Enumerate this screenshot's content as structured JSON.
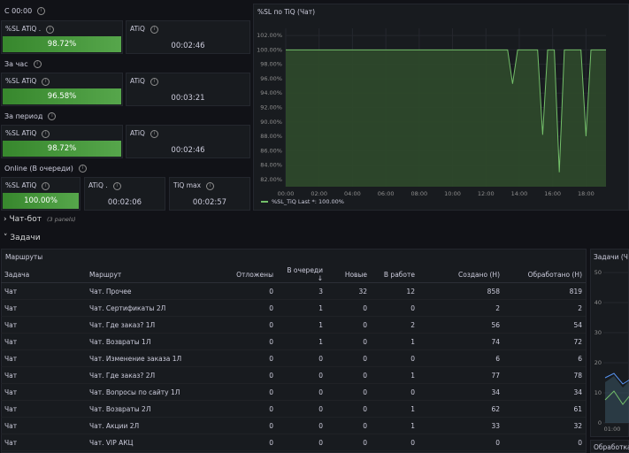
{
  "sections": {
    "c0000": "С 00:00",
    "za_chas": "За час",
    "za_period": "За период",
    "online": "Online (В очереди)"
  },
  "stats": {
    "r1": {
      "sl_title": "%SL ATiQ .",
      "sl_value": "98.72%",
      "atiq_title": "ATiQ",
      "atiq_value": "00:02:46"
    },
    "r2": {
      "sl_title": "%SL ATiQ",
      "sl_value": "96.58%",
      "atiq_title": "ATiQ",
      "atiq_value": "00:03:21"
    },
    "r3": {
      "sl_title": "%SL ATiQ",
      "sl_value": "98.72%",
      "atiq_title": "ATiQ",
      "atiq_value": "00:02:46"
    },
    "r4": {
      "sl_title": "%SL ATiQ",
      "sl_value": "100.00%",
      "atiq_title": "ATiQ .",
      "atiq_value": "00:02:06",
      "tiq_title": "TiQ max",
      "tiq_value": "00:02:57"
    }
  },
  "chart_panel": {
    "title": "%SL по TiQ (Чат)",
    "legend": "%SL_TiQ  Last *: 100.00%"
  },
  "chart_data": {
    "type": "area",
    "title": "%SL по TiQ (Чат)",
    "y_ticks": [
      "102.00%",
      "100.00%",
      "98.00%",
      "96.00%",
      "94.00%",
      "92.00%",
      "90.00%",
      "88.00%",
      "86.00%",
      "84.00%",
      "82.00%"
    ],
    "x_ticks": [
      "00:00",
      "02:00",
      "04:00",
      "06:00",
      "08:00",
      "10:00",
      "12:00",
      "14:00",
      "16:00",
      "18:00"
    ],
    "ylim": [
      81,
      103
    ],
    "xlim": [
      0,
      19.2
    ],
    "series": [
      {
        "name": "%SL_TiQ",
        "color": "#73bf69",
        "x": [
          0,
          13.3,
          13.6,
          13.9,
          14.5,
          15.1,
          15.4,
          15.7,
          16.1,
          16.4,
          16.7,
          17.1,
          17.4,
          17.7,
          18.0,
          18.3,
          18.6,
          19.2
        ],
        "values": [
          100,
          100,
          95.3,
          100,
          100,
          100,
          88.2,
          100,
          100,
          83.0,
          100,
          100,
          100,
          100,
          88.0,
          100,
          100,
          100
        ]
      }
    ]
  },
  "chatbot_row": {
    "title": "Чат-бот",
    "count": "(3 panels)"
  },
  "tasks_row": {
    "title": "Задачи"
  },
  "routes_panel": {
    "title": "Маршруты"
  },
  "right_panel_title": "Задачи (Ч",
  "right_panel_bottom": "Обработка",
  "right_chart": {
    "y_ticks": [
      "50",
      "40",
      "30",
      "20",
      "10",
      "0"
    ],
    "x_tick": "01:00"
  },
  "table": {
    "columns": [
      "Задача",
      "Маршрут",
      "Отложены",
      "В очереди ↓",
      "Новые",
      "В работе",
      "Создано (Н)",
      "Обработано (Н)"
    ],
    "rows": [
      [
        "Чат",
        "Чат. Прочее",
        "0",
        "3",
        "32",
        "12",
        "858",
        "819"
      ],
      [
        "Чат",
        "Чат. Сертификаты 2Л",
        "0",
        "1",
        "0",
        "0",
        "2",
        "2"
      ],
      [
        "Чат",
        "Чат. Где заказ? 1Л",
        "0",
        "1",
        "0",
        "2",
        "56",
        "54"
      ],
      [
        "Чат",
        "Чат. Возвраты 1Л",
        "0",
        "1",
        "0",
        "1",
        "74",
        "72"
      ],
      [
        "Чат",
        "Чат. Изменение заказа 1Л",
        "0",
        "0",
        "0",
        "0",
        "6",
        "6"
      ],
      [
        "Чат",
        "Чат. Где заказ? 2Л",
        "0",
        "0",
        "0",
        "1",
        "77",
        "78"
      ],
      [
        "Чат",
        "Чат. Вопросы по сайту 1Л",
        "0",
        "0",
        "0",
        "0",
        "34",
        "34"
      ],
      [
        "Чат",
        "Чат. Возвраты 2Л",
        "0",
        "0",
        "0",
        "1",
        "62",
        "61"
      ],
      [
        "Чат",
        "Чат. Акции 2Л",
        "0",
        "0",
        "0",
        "1",
        "33",
        "32"
      ],
      [
        "Чат",
        "Чат. VIP АКЦ",
        "0",
        "0",
        "0",
        "0",
        "0",
        "0"
      ]
    ]
  }
}
